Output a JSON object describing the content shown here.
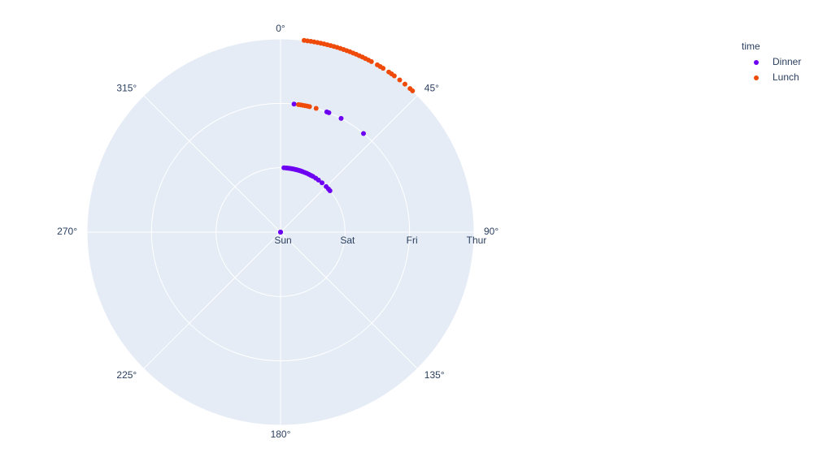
{
  "chart_data": {
    "type": "scatter_polar",
    "radial_categories": [
      "Sun",
      "Sat",
      "Fri",
      "Thur"
    ],
    "angular_ticks": [
      {
        "value": 0,
        "label": "0°"
      },
      {
        "value": 45,
        "label": "45°"
      },
      {
        "value": 90,
        "label": "90°"
      },
      {
        "value": 135,
        "label": "135°"
      },
      {
        "value": 180,
        "label": "180°"
      },
      {
        "value": 225,
        "label": "225°"
      },
      {
        "value": 270,
        "label": "270°"
      },
      {
        "value": 315,
        "label": "315°"
      }
    ],
    "legend_title": "time",
    "background": "#e5ecf6",
    "grid_color": "#ffffff",
    "series": [
      {
        "name": "Dinner",
        "color": "#6e00f2",
        "r": [
          "Sun",
          "Sun",
          "Sun",
          "Sat",
          "Sat",
          "Sat",
          "Sat",
          "Sat",
          "Sat",
          "Sat",
          "Sat",
          "Sat",
          "Sat",
          "Sat",
          "Sat",
          "Sat",
          "Sat",
          "Sat",
          "Sat",
          "Sat",
          "Sat",
          "Sat",
          "Sat",
          "Sat",
          "Sat",
          "Sat",
          "Sat",
          "Sat",
          "Sat",
          "Sat",
          "Sat",
          "Fri",
          "Fri",
          "Fri",
          "Fri",
          "Fri"
        ],
        "theta": [
          2,
          4,
          5,
          3,
          5,
          6,
          7,
          8,
          9,
          10,
          11,
          12,
          13,
          14,
          15,
          16,
          17,
          18,
          19,
          20,
          22,
          24,
          26,
          28,
          30,
          33,
          36,
          40,
          45,
          48,
          50,
          6,
          21,
          22,
          28,
          40
        ]
      },
      {
        "name": "Lunch",
        "color": "#ef4a09",
        "r": [
          "Fri",
          "Fri",
          "Fri",
          "Fri",
          "Fri",
          "Fri",
          "Fri",
          "Thur",
          "Thur",
          "Thur",
          "Thur",
          "Thur",
          "Thur",
          "Thur",
          "Thur",
          "Thur",
          "Thur",
          "Thur",
          "Thur",
          "Thur",
          "Thur",
          "Thur",
          "Thur",
          "Thur",
          "Thur",
          "Thur",
          "Thur",
          "Thur",
          "Thur",
          "Thur",
          "Thur",
          "Thur",
          "Thur",
          "Thur",
          "Thur",
          "Thur",
          "Thur",
          "Thur",
          "Thur"
        ],
        "theta": [
          8,
          9,
          10,
          11,
          12,
          13,
          16,
          7,
          8,
          9,
          10,
          11,
          12,
          13,
          14,
          15,
          16,
          17,
          18,
          19,
          20,
          21,
          22,
          23,
          24,
          25,
          26,
          27,
          28,
          30,
          31,
          32,
          34,
          35,
          36,
          38,
          40,
          42,
          43
        ]
      }
    ]
  }
}
